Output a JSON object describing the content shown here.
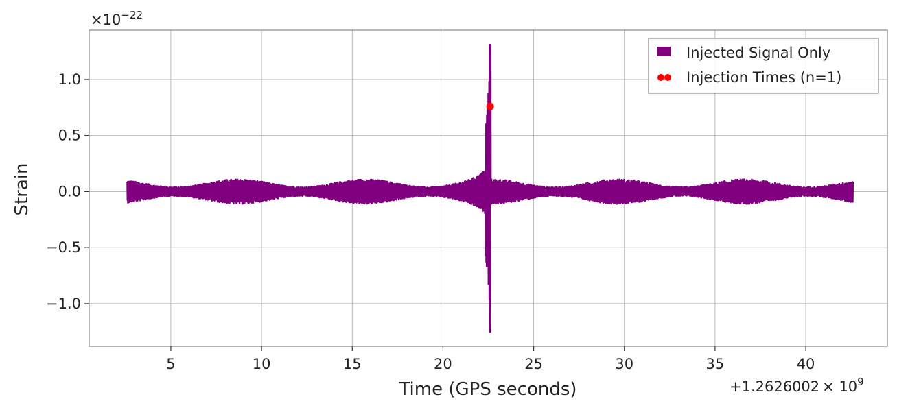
{
  "chart_data": {
    "type": "line",
    "title": "",
    "xlabel": "Time (GPS seconds)",
    "ylabel": "Strain",
    "x_offset_text": "+1.2626002",
    "x_offset_multiplier": "× 10",
    "x_offset_exponent": "9",
    "y_scale_text": "×10",
    "y_scale_exponent": "−22",
    "xlim": [
      0.5,
      44.5
    ],
    "ylim": [
      -1.38,
      1.44
    ],
    "x_ticks": [
      5,
      10,
      15,
      20,
      25,
      30,
      35,
      40
    ],
    "x_tick_labels": [
      "5",
      "10",
      "15",
      "20",
      "25",
      "30",
      "35",
      "40"
    ],
    "y_ticks": [
      -1.0,
      -0.5,
      0.0,
      0.5,
      1.0
    ],
    "y_tick_labels": [
      "−1.0",
      "−0.5",
      "0.0",
      "0.5",
      "1.0"
    ],
    "grid": true,
    "legend_position": "top-right",
    "series": [
      {
        "name": "Injected Signal Only",
        "kind": "line",
        "color": "#800080",
        "x_start": 2.6,
        "x_end": 42.6,
        "baseline_amplitude": 0.1,
        "peak_time": 22.6,
        "peak_max": 1.31,
        "peak_min": -1.25
      },
      {
        "name": "Injection Times (n=1)",
        "kind": "scatter",
        "color": "#ff0000",
        "points": [
          {
            "x": 22.6,
            "y": 0.76
          }
        ]
      }
    ]
  }
}
